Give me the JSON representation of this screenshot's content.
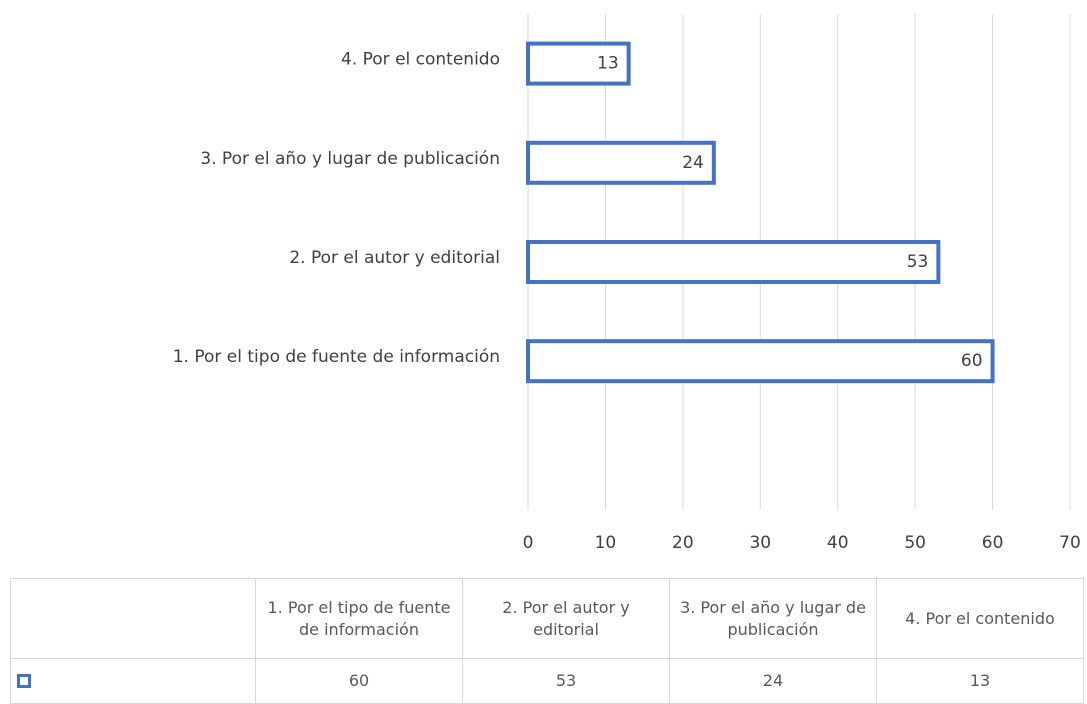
{
  "chart_data": {
    "type": "bar",
    "orientation": "horizontal",
    "categories": [
      "1. Por el tipo de fuente de información",
      "2. Por el autor y editorial",
      "3. Por el año y lugar de publicación",
      "4. Por el contenido"
    ],
    "values": [
      60,
      53,
      24,
      13
    ],
    "color": "#4472c4",
    "xlim": [
      0,
      70
    ],
    "xticks": [
      0,
      10,
      20,
      30,
      40,
      50,
      60,
      70
    ],
    "grid": true,
    "data_table": true
  }
}
